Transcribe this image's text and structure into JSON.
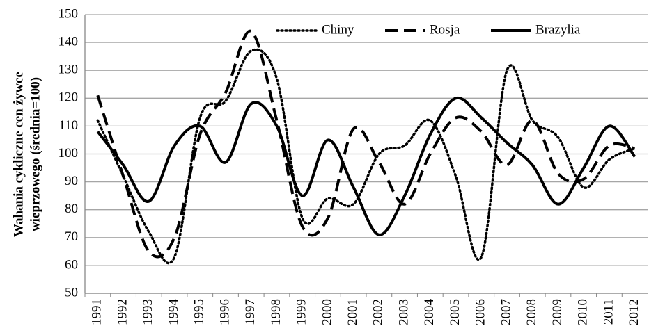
{
  "chart_data": {
    "type": "line",
    "y_label": [
      "Wahania cykliczne cen żywce",
      "wieprzowego (średnia=100)"
    ],
    "categories": [
      "1991",
      "1992",
      "1993",
      "1994",
      "1995",
      "1996",
      "1997",
      "1998",
      "1999",
      "2000",
      "2001",
      "2002",
      "2003",
      "2004",
      "2005",
      "2006",
      "2007",
      "2008",
      "2009",
      "2010",
      "2011",
      "2012"
    ],
    "series": [
      {
        "name": "Chiny",
        "color": "#000000",
        "dash": "dotted",
        "values": [
          112,
          92,
          72,
          63,
          113,
          119,
          137,
          127,
          77,
          84,
          82,
          100,
          103,
          112,
          92,
          63,
          130,
          112,
          106,
          88,
          98,
          102
        ]
      },
      {
        "name": "Rosja",
        "color": "#000000",
        "dash": "dashed",
        "values": [
          121,
          92,
          65,
          70,
          107,
          122,
          144,
          112,
          74,
          77,
          109,
          97,
          82,
          100,
          113,
          108,
          96,
          112,
          93,
          91,
          103,
          102
        ]
      },
      {
        "name": "Brazylia",
        "color": "#000000",
        "dash": "solid",
        "values": [
          108,
          96,
          83,
          103,
          110,
          97,
          118,
          110,
          85,
          105,
          88,
          71,
          85,
          107,
          120,
          113,
          104,
          96,
          82,
          95,
          110,
          99
        ]
      }
    ],
    "ylim": [
      50,
      150
    ],
    "yticks": [
      50,
      60,
      70,
      80,
      90,
      100,
      110,
      120,
      130,
      140,
      150
    ],
    "grid": true,
    "legend": "top"
  }
}
